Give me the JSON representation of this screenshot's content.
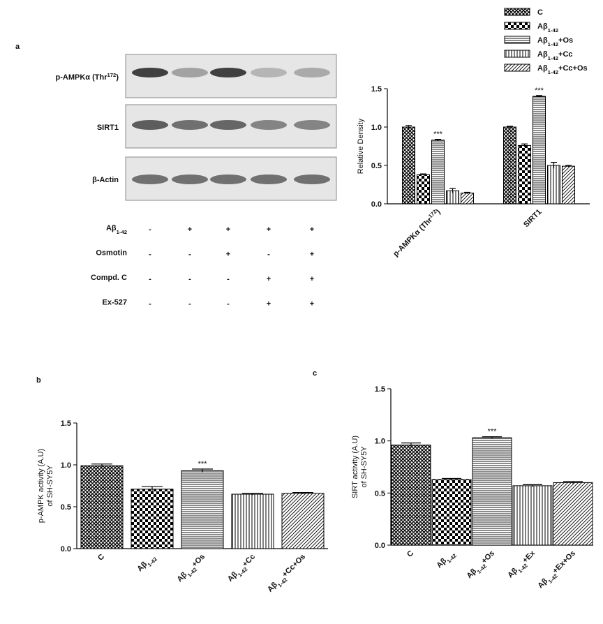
{
  "panel_labels": [
    "a",
    "b",
    "c"
  ],
  "blot": {
    "labels": [
      [
        "p-AMPKα (Thr",
        {
          "sup": "172"
        },
        ")"
      ],
      "SIRT1",
      "β-Actin"
    ]
  },
  "treatments": {
    "rows": [
      {
        "label": [
          "Aβ",
          {
            "sub": "1-42"
          }
        ],
        "signs": [
          "-",
          "+",
          "+",
          "+",
          "+"
        ]
      },
      {
        "label": "Osmotin",
        "signs": [
          "-",
          "-",
          "+",
          "-",
          "+"
        ]
      },
      {
        "label": "Compd. C",
        "signs": [
          "-",
          "-",
          "-",
          "+",
          "+"
        ]
      },
      {
        "label": "Ex-527",
        "signs": [
          "-",
          "-",
          "-",
          "+",
          "+"
        ]
      }
    ]
  },
  "chart_data": [
    {
      "type": "bar",
      "ylabel": [
        "Relative Density"
      ],
      "categories": [
        [
          "p-AMPKα (Thr",
          {
            "sup": "172"
          },
          ")"
        ],
        "SIRT1"
      ],
      "series": [
        {
          "name": "C",
          "pattern": "crosshatch",
          "values": [
            1.0,
            1.0
          ],
          "errors": [
            0.02,
            0.01
          ],
          "annotations": [
            null,
            null
          ]
        },
        {
          "name": [
            "Aβ",
            {
              "sub": "1-42"
            }
          ],
          "pattern": "checker",
          "values": [
            0.38,
            0.76
          ],
          "errors": [
            0.01,
            0.02
          ],
          "annotations": [
            null,
            null
          ]
        },
        {
          "name": [
            "Aβ",
            {
              "sub": "1-42"
            },
            "+Os"
          ],
          "pattern": "hlines",
          "values": [
            0.83,
            1.4
          ],
          "errors": [
            0.01,
            0.01
          ],
          "annotations": [
            "***",
            "***"
          ]
        },
        {
          "name": [
            "Aβ",
            {
              "sub": "1-42"
            },
            "+Cc"
          ],
          "pattern": "vlines",
          "values": [
            0.17,
            0.5
          ],
          "errors": [
            0.03,
            0.04
          ],
          "annotations": [
            null,
            null
          ]
        },
        {
          "name": [
            "Aβ",
            {
              "sub": "1-42"
            },
            "+Cc+Os"
          ],
          "pattern": "diag",
          "values": [
            0.14,
            0.49
          ],
          "errors": [
            0.01,
            0.01
          ],
          "annotations": [
            null,
            null
          ]
        }
      ],
      "ylim": [
        0,
        1.5
      ],
      "yticks": [
        {
          "value": 0,
          "label": "0.0"
        },
        0.5,
        {
          "value": 1,
          "label": "1.0"
        },
        1.5
      ],
      "legend": "top-right"
    },
    {
      "type": "bar",
      "ylabel": [
        "p-AMPK activity (A.U)",
        "of SH-SY5Y"
      ],
      "categories": [
        "C",
        [
          "Aβ",
          {
            "sub": "1-42"
          }
        ],
        [
          "Aβ",
          {
            "sub": "1-42"
          },
          "+Os"
        ],
        [
          "Aβ",
          {
            "sub": "1-42"
          },
          "+Cc"
        ],
        [
          "Aβ",
          {
            "sub": "1-42"
          },
          "+Cc+Os"
        ]
      ],
      "values": [
        0.99,
        0.71,
        0.93,
        0.65,
        0.66
      ],
      "errors": [
        0.02,
        0.03,
        0.02,
        0.01,
        0.01
      ],
      "annotations": [
        null,
        null,
        "***",
        null,
        null
      ],
      "patterns": [
        "crosshatch",
        "checker",
        "hlines",
        "vlines",
        "diag"
      ],
      "ylim": [
        0,
        1.5
      ],
      "yticks": [
        {
          "value": 0,
          "label": "0.0"
        },
        0.5,
        {
          "value": 1,
          "label": "1.0"
        },
        1.5
      ]
    },
    {
      "type": "bar",
      "ylabel": [
        "SIRT activity (A.U)",
        "of SH-SY5Y"
      ],
      "categories": [
        "C",
        [
          "Aβ",
          {
            "sub": "1-42"
          }
        ],
        [
          "Aβ",
          {
            "sub": "1-42"
          },
          "+Os"
        ],
        [
          "Aβ",
          {
            "sub": "1-42"
          },
          "+Ex"
        ],
        [
          "Aβ",
          {
            "sub": "1-42"
          },
          "+Ex+Os"
        ]
      ],
      "values": [
        0.96,
        0.63,
        1.03,
        0.57,
        0.6
      ],
      "errors": [
        0.02,
        0.01,
        0.01,
        0.01,
        0.01
      ],
      "annotations": [
        null,
        null,
        "***",
        null,
        null
      ],
      "patterns": [
        "crosshatch",
        "checker",
        "hlines",
        "vlines",
        "diag"
      ],
      "ylim": [
        0,
        1.5
      ],
      "yticks": [
        {
          "value": 0,
          "label": "0.0"
        },
        0.5,
        {
          "value": 1,
          "label": "1.0"
        },
        1.5
      ]
    }
  ]
}
